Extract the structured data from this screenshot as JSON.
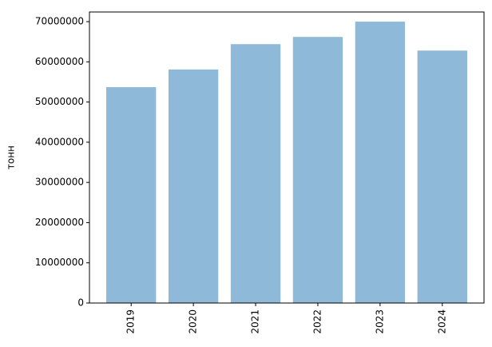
{
  "chart_data": {
    "type": "bar",
    "y_label": "тонн",
    "categories": [
      "2019",
      "2020",
      "2021",
      "2022",
      "2023",
      "2024"
    ],
    "values": [
      53700000,
      58100000,
      64400000,
      66200000,
      70000000,
      62800000
    ],
    "color": "#8fb9d9",
    "ylim": [
      0,
      72400000
    ],
    "yticks": [
      0,
      10000000,
      20000000,
      30000000,
      40000000,
      50000000,
      60000000,
      70000000
    ]
  }
}
